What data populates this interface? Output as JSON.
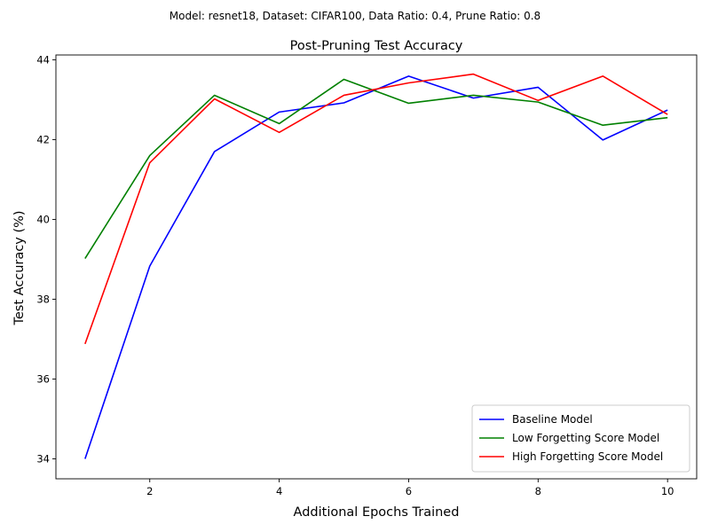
{
  "chart_data": {
    "type": "line",
    "suptitle": "Model: resnet18, Dataset: CIFAR100, Data Ratio: 0.4, Prune Ratio: 0.8",
    "title": "Post-Pruning Test Accuracy",
    "xlabel": "Additional Epochs Trained",
    "ylabel": "Test Accuracy (%)",
    "xlim": [
      0.55,
      10.45
    ],
    "ylim": [
      33.5,
      44.12
    ],
    "xticks": [
      2,
      4,
      6,
      8,
      10
    ],
    "yticks": [
      34,
      36,
      38,
      40,
      42,
      44
    ],
    "grid": false,
    "legend_position": "lower-right",
    "x": [
      1,
      2,
      3,
      4,
      5,
      6,
      7,
      8,
      9,
      10
    ],
    "series": [
      {
        "name": "Baseline Model",
        "color": "#0000ff",
        "values": [
          34.0,
          38.83,
          41.7,
          42.69,
          42.92,
          43.59,
          43.04,
          43.31,
          41.99,
          42.74
        ]
      },
      {
        "name": "Low Forgetting Score Model",
        "color": "#008000",
        "values": [
          39.02,
          41.6,
          43.11,
          42.4,
          43.51,
          42.91,
          43.11,
          42.94,
          42.36,
          42.55
        ]
      },
      {
        "name": "High Forgetting Score Model",
        "color": "#ff0000",
        "values": [
          36.88,
          41.42,
          43.02,
          42.18,
          43.11,
          43.42,
          43.64,
          42.98,
          43.59,
          42.63
        ]
      }
    ]
  }
}
